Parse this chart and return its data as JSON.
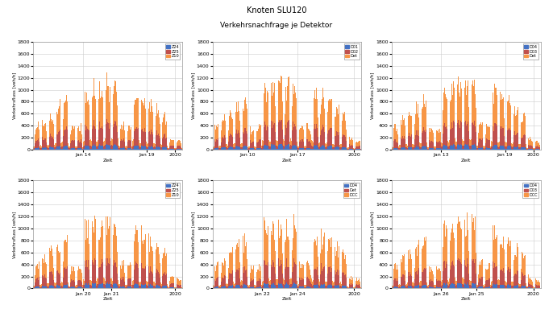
{
  "title_line1": "Knoten SLU120",
  "title_line2": "Verkehrsnachfrage je Detektor",
  "colors": [
    "#4472c4",
    "#c0504d",
    "#f79646"
  ],
  "ylabel": "Verkehrsfluss [veh/h]",
  "xlabel": "Zeit",
  "ylim": [
    0,
    1800
  ],
  "yticks": [
    0,
    200,
    400,
    600,
    800,
    1000,
    1200,
    1400,
    1600,
    1800
  ],
  "background_color": "#ffffff",
  "n_hours": 504,
  "legend_configs": [
    [
      "Z24",
      "Z25",
      "Z10"
    ],
    [
      "D01",
      "D02",
      "Det"
    ],
    [
      "D04",
      "D03",
      "Det"
    ],
    [
      "Z24",
      "Z25",
      "Z10"
    ],
    [
      "D04",
      "Det",
      "DCC"
    ],
    [
      "D04",
      "D03",
      "DCC"
    ]
  ],
  "xtick_configs": [
    {
      "labels": [
        "Jan 14",
        "Jan 19",
        "2020"
      ],
      "ticks": [
        168,
        384,
        480
      ]
    },
    {
      "labels": [
        "Jan 10",
        "Jan 17",
        "2020"
      ],
      "ticks": [
        120,
        288,
        480
      ]
    },
    {
      "labels": [
        "Jan 13",
        "Jan 19",
        "2020"
      ],
      "ticks": [
        168,
        384,
        480
      ]
    },
    {
      "labels": [
        "Jan 20",
        "Jan 21",
        "2020"
      ],
      "ticks": [
        168,
        264,
        480
      ]
    },
    {
      "labels": [
        "Jan 22",
        "Jan 24",
        "2020"
      ],
      "ticks": [
        168,
        288,
        480
      ]
    },
    {
      "labels": [
        "Jan 26",
        "Jan 25",
        "2020"
      ],
      "ticks": [
        168,
        288,
        480
      ]
    }
  ],
  "seeds": [
    42,
    52,
    62,
    72,
    82,
    92
  ]
}
